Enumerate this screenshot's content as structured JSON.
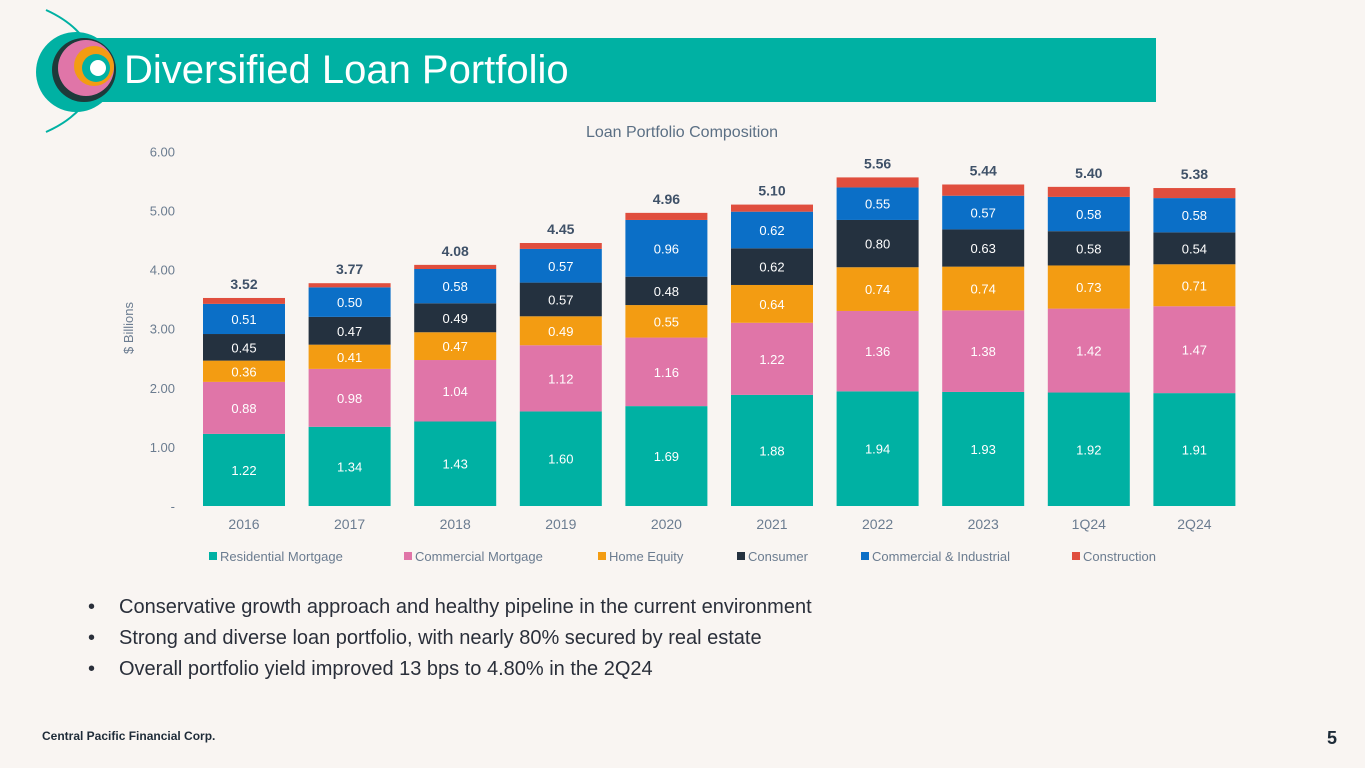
{
  "header": {
    "title": "Diversified Loan Portfolio"
  },
  "colors": {
    "accent": "#00b1a3",
    "dark": "#1e2b38",
    "background": "#f9f5f2"
  },
  "chart_data": {
    "type": "bar",
    "stacked": true,
    "title": "Loan Portfolio Composition",
    "xlabel": "",
    "ylabel": "$ Billions",
    "ylim": [
      0,
      6
    ],
    "yticks": [
      0,
      1,
      2,
      3,
      4,
      5,
      6
    ],
    "ytick_labels": [
      "-",
      "1.00",
      "2.00",
      "3.00",
      "4.00",
      "5.00",
      "6.00"
    ],
    "grid": false,
    "legend_position": "bottom",
    "categories": [
      "2016",
      "2017",
      "2018",
      "2019",
      "2020",
      "2021",
      "2022",
      "2023",
      "1Q24",
      "2Q24"
    ],
    "totals": [
      "3.52",
      "3.77",
      "4.08",
      "4.45",
      "4.96",
      "5.10",
      "5.56",
      "5.44",
      "5.40",
      "5.38"
    ],
    "series": [
      {
        "name": "Residential Mortgage",
        "color": "#00b1a3",
        "values": [
          1.22,
          1.34,
          1.43,
          1.6,
          1.69,
          1.88,
          1.94,
          1.93,
          1.92,
          1.91
        ]
      },
      {
        "name": "Commercial Mortgage",
        "color": "#e075a8",
        "values": [
          0.88,
          0.98,
          1.04,
          1.12,
          1.16,
          1.22,
          1.36,
          1.38,
          1.42,
          1.47
        ]
      },
      {
        "name": "Home Equity",
        "color": "#f39c12",
        "values": [
          0.36,
          0.41,
          0.47,
          0.49,
          0.55,
          0.64,
          0.74,
          0.74,
          0.73,
          0.71
        ]
      },
      {
        "name": "Consumer",
        "color": "#24313f",
        "values": [
          0.45,
          0.47,
          0.49,
          0.57,
          0.48,
          0.62,
          0.8,
          0.63,
          0.58,
          0.54
        ]
      },
      {
        "name": "Commercial & Industrial",
        "color": "#0b6fc7",
        "values": [
          0.51,
          0.5,
          0.58,
          0.57,
          0.96,
          0.62,
          0.55,
          0.57,
          0.58,
          0.58
        ]
      },
      {
        "name": "Construction",
        "color": "#e04e3e",
        "values": [
          0.1,
          0.07,
          0.07,
          0.1,
          0.12,
          0.12,
          0.17,
          0.19,
          0.17,
          0.17
        ]
      }
    ],
    "show_labels": [
      true,
      true,
      true,
      true,
      true,
      false
    ]
  },
  "bullets": [
    "Conservative growth approach and healthy pipeline in the current environment",
    "Strong and diverse loan portfolio, with nearly 80% secured by real estate",
    "Overall portfolio yield improved 13 bps to 4.80% in the 2Q24"
  ],
  "bullet_symbol": "•",
  "footer": {
    "company": "Central Pacific Financial Corp.",
    "page_number": "5"
  }
}
